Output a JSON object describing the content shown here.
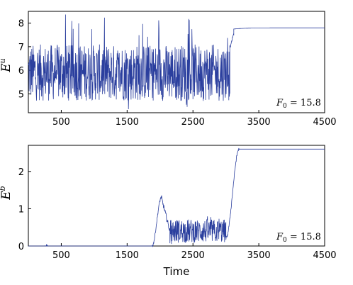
{
  "chart_data": [
    {
      "type": "line",
      "ylabel_base": "E",
      "ylabel_sup": "u",
      "xlabel": "",
      "xlim": [
        0,
        4500
      ],
      "ylim": [
        4.2,
        8.5
      ],
      "xticks": [
        500,
        1500,
        2500,
        3500,
        4500
      ],
      "yticks": [
        5,
        6,
        7,
        8
      ],
      "annotation": "F0 = 15.8",
      "annotation_base": "F",
      "annotation_sub": "0",
      "annotation_rest": " = 15.8",
      "color": "#2b3f9e",
      "series": [
        {
          "segments": [
            {
              "x": [
                0,
                3060
              ],
              "kind": "noise",
              "center": 5.9,
              "amplitude": 1.5,
              "min": 4.3,
              "max": 8.4
            },
            {
              "x": [
                3060,
                3120
              ],
              "kind": "transition",
              "y": [
                7.0,
                7.5
              ]
            },
            {
              "x": [
                3120,
                4500
              ],
              "kind": "plateau",
              "y": [
                7.75,
                7.8
              ]
            }
          ]
        }
      ]
    },
    {
      "type": "line",
      "ylabel_base": "E",
      "ylabel_sup": "b",
      "xlabel": "Time",
      "xlim": [
        0,
        4500
      ],
      "ylim": [
        0,
        2.7
      ],
      "xticks": [
        500,
        1500,
        2500,
        3500,
        4500
      ],
      "yticks": [
        0,
        1,
        2
      ],
      "annotation": "F0 = 15.8",
      "annotation_base": "F",
      "annotation_sub": "0",
      "annotation_rest": " = 15.8",
      "color": "#2b3f9e",
      "series": [
        {
          "segments": [
            {
              "x": [
                0,
                1880
              ],
              "kind": "flat",
              "y": 0.0
            },
            {
              "x": [
                1880,
                2020
              ],
              "kind": "rise",
              "y": [
                0.0,
                1.3
              ]
            },
            {
              "x": [
                2020,
                2150
              ],
              "kind": "decay",
              "y": [
                1.3,
                0.4
              ]
            },
            {
              "x": [
                2150,
                3000
              ],
              "kind": "noise",
              "center": 0.4,
              "amplitude": 0.4,
              "min": 0.0,
              "max": 0.9
            },
            {
              "x": [
                3000,
                3200
              ],
              "kind": "rise",
              "y": [
                0.2,
                2.6
              ]
            },
            {
              "x": [
                3200,
                4500
              ],
              "kind": "plateau",
              "y": [
                2.6,
                2.6
              ]
            }
          ]
        }
      ]
    }
  ]
}
